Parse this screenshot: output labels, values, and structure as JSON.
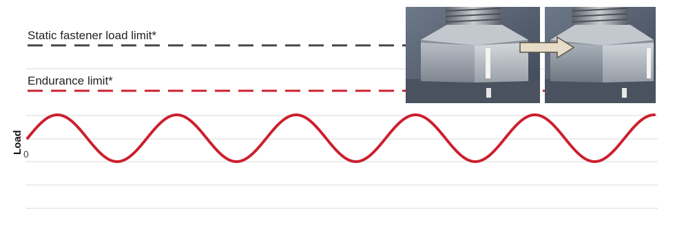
{
  "labels": {
    "static_limit": "Static fastener load limit*",
    "endurance_limit": "Endurance limit*",
    "y_axis": "Load",
    "origin": "0"
  },
  "colors": {
    "static_line": "#444444",
    "endurance_line": "#cc1f2d",
    "wave": "#cc1f2d",
    "gridline": "#d9d9d9",
    "arrow": "#e6dcc8"
  },
  "wave": {
    "cycles": 5.25,
    "phase_start": "zero-crossing, rising"
  },
  "photos": {
    "before": "nut-tight-photo",
    "after": "nut-loosened-photo"
  }
}
